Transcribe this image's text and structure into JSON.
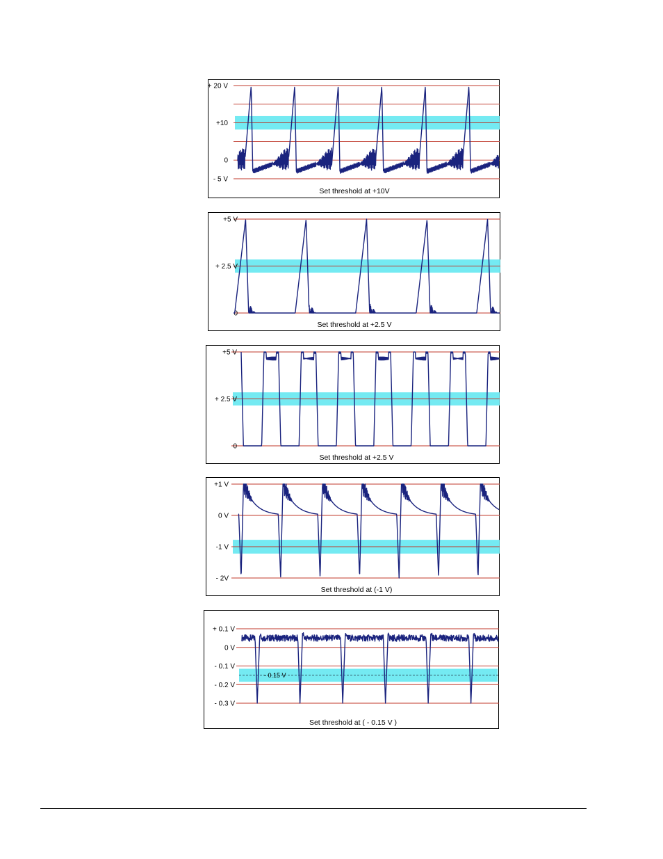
{
  "colors": {
    "grid_line": "#c0392b",
    "signal": "#1a237e",
    "threshold_band": "#5ce6f0",
    "threshold_line": "#223344"
  },
  "chart_data": [
    {
      "type": "line",
      "title": "",
      "caption": "Set threshold at +10V",
      "ylim": [
        -5,
        20
      ],
      "yticks": [
        {
          "value": 20,
          "label": "+ 20 V"
        },
        {
          "value": 15,
          "label": ""
        },
        {
          "value": 10,
          "label": "+10"
        },
        {
          "value": 5,
          "label": ""
        },
        {
          "value": 0,
          "label": "0"
        },
        {
          "value": -5,
          "label": "- 5 V"
        }
      ],
      "threshold": {
        "value": 10,
        "band": [
          8.2,
          11.8
        ],
        "label": ""
      },
      "series": [
        {
          "shape": "sawtooth-ringing",
          "period": 1.0,
          "low": -5,
          "high": 20,
          "rise": 0.14,
          "fall": 0.04,
          "baseline_start": -3,
          "baseline_end": 0.5
        }
      ],
      "x_phase_start": -0.35,
      "x_cycles": 6
    },
    {
      "type": "line",
      "title": "",
      "caption": "Set threshold at +2.5 V",
      "ylim": [
        0,
        5
      ],
      "yticks": [
        {
          "value": 5,
          "label": "+5 V"
        },
        {
          "value": 2.5,
          "label": "+ 2.5 V"
        },
        {
          "value": 0,
          "label": "0"
        }
      ],
      "threshold": {
        "value": 2.5,
        "band": [
          2.15,
          2.85
        ],
        "label": ""
      },
      "series": [
        {
          "shape": "ramp-ringing",
          "period": 1.0,
          "low": 0,
          "high": 5,
          "rise": 0.18,
          "fall": 0.05
        }
      ],
      "x_phase_start": -0.25,
      "x_cycles": 4.4
    },
    {
      "type": "line",
      "title": "",
      "caption": "Set threshold at +2.5 V",
      "ylim": [
        0,
        5
      ],
      "yticks": [
        {
          "value": 5,
          "label": "+5 V"
        },
        {
          "value": 2.5,
          "label": "+ 2.5 V"
        },
        {
          "value": 0,
          "label": "0"
        }
      ],
      "threshold": {
        "value": 2.5,
        "band": [
          2.15,
          2.85
        ],
        "label": ""
      },
      "series": [
        {
          "shape": "square",
          "period": 1.0,
          "low": 0,
          "high": 5,
          "duty": 0.45
        }
      ],
      "x_phase_start": -0.55,
      "x_cycles": 6.9
    },
    {
      "type": "line",
      "title": "",
      "caption": "Set threshold at  (-1 V)",
      "ylim": [
        -2,
        1
      ],
      "yticks": [
        {
          "value": 1,
          "label": "+1 V"
        },
        {
          "value": 0,
          "label": "0 V"
        },
        {
          "value": -1,
          "label": "-1 V"
        },
        {
          "value": -2,
          "label": "- 2V"
        }
      ],
      "threshold": {
        "value": -1,
        "band": [
          -1.22,
          -0.78
        ],
        "label": ""
      },
      "series": [
        {
          "shape": "spike-down-decay",
          "period": 1.0,
          "low": -2,
          "high": 1,
          "rest": 0.0
        }
      ],
      "x_phase_start": -0.15,
      "x_cycles": 6.6
    },
    {
      "type": "line",
      "title": "",
      "caption": "Set threshold at  ( - 0.15 V )",
      "ylim": [
        -0.3,
        0.1
      ],
      "yticks": [
        {
          "value": 0.1,
          "label": "+ 0.1 V"
        },
        {
          "value": 0,
          "label": "0 V"
        },
        {
          "value": -0.1,
          "label": "- 0.1 V"
        },
        {
          "value": -0.2,
          "label": "- 0.2 V"
        },
        {
          "value": -0.3,
          "label": "- 0.3 V"
        }
      ],
      "threshold": {
        "value": -0.15,
        "band": [
          -0.185,
          -0.115
        ],
        "label": "- 0.15 V",
        "dashed": true
      },
      "series": [
        {
          "shape": "noise-spike-down",
          "period": 1.0,
          "low": -0.3,
          "high": 0.07,
          "rest": 0.05
        }
      ],
      "x_phase_start": -0.45,
      "x_cycles": 6.0
    }
  ]
}
